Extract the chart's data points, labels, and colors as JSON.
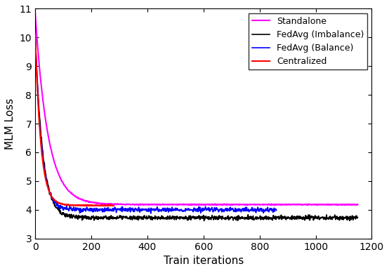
{
  "title": "",
  "xlabel": "Train iterations",
  "ylabel": "MLM Loss",
  "xlim": [
    0,
    1200
  ],
  "ylim": [
    3,
    11
  ],
  "yticks": [
    3,
    4,
    5,
    6,
    7,
    8,
    9,
    10,
    11
  ],
  "xticks": [
    0,
    200,
    400,
    600,
    800,
    1000,
    1200
  ],
  "lines": {
    "fedavg_balance": {
      "label": "FedAvg (Balance)",
      "color": "#0000ff",
      "linewidth": 1.2,
      "start_val": 10.15,
      "end_val": 4.0,
      "decay": 0.045,
      "noise": 0.04,
      "total_iters": 860
    },
    "fedavg_imbalance": {
      "label": "FedAvg (Imbalance)",
      "color": "#000000",
      "linewidth": 1.2,
      "start_val": 10.1,
      "end_val": 3.72,
      "decay": 0.038,
      "noise": 0.038,
      "total_iters": 1150
    },
    "centralized": {
      "label": "Centralized",
      "color": "#ff0000",
      "linewidth": 1.5,
      "start_val": 10.1,
      "end_val": 4.15,
      "decay": 0.05,
      "noise": 0.008,
      "total_iters": 280
    },
    "standalone": {
      "label": "Standalone",
      "color": "#ff00ff",
      "linewidth": 1.5,
      "start_val": 10.85,
      "end_val": 4.18,
      "decay": 0.022,
      "noise": 0.008,
      "total_iters": 1150
    }
  },
  "legend_loc": "upper right",
  "background_color": "#ffffff"
}
